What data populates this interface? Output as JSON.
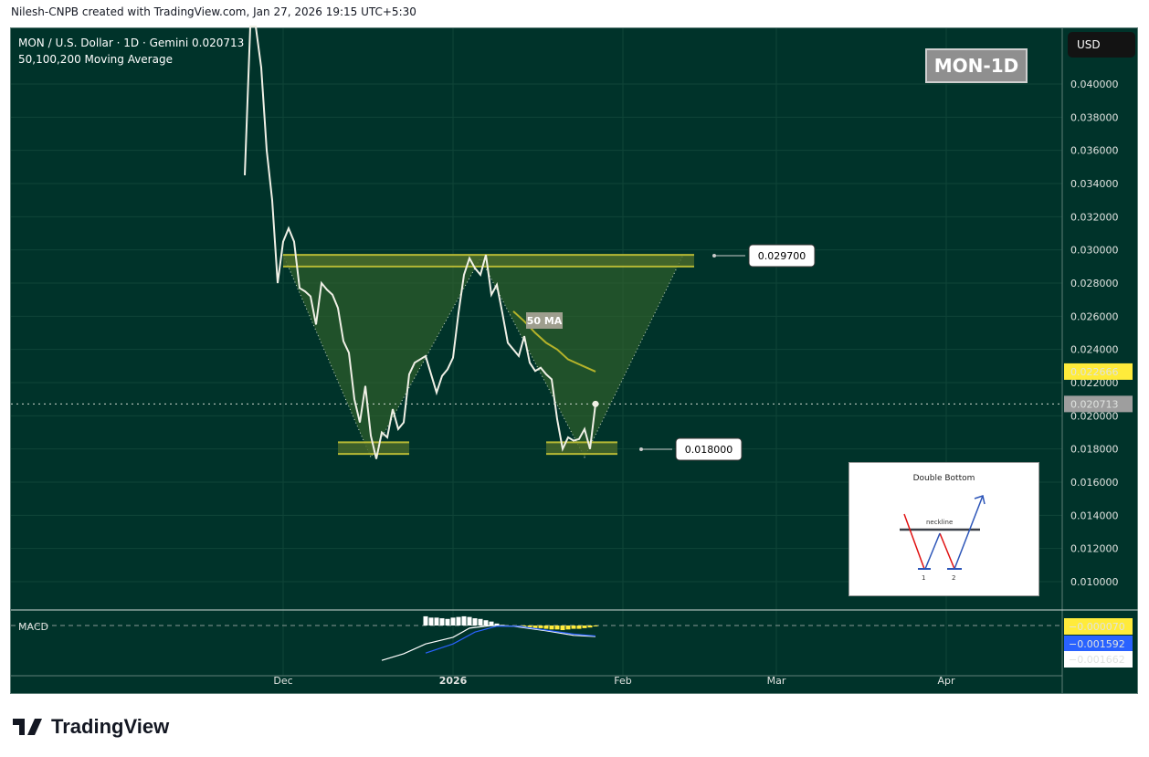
{
  "header": {
    "credit": "Nilesh-CNPB created with TradingView.com, Jan 27, 2026 19:15 UTC+5:30"
  },
  "legend": {
    "symbol_line": "MON / U.S. Dollar · 1D · Gemini  0.020713",
    "indicator": "50,100,200 Moving Average"
  },
  "badge": "MON-1D",
  "currency": "USD",
  "pattern_card": {
    "title": "Double Bottom",
    "neckline": "neckline",
    "bottom1": "1",
    "bottom2": "2"
  },
  "brand": "TradingView",
  "colors": {
    "background": "#00332a",
    "price": "#f0f0e6",
    "zone": "#b5b835",
    "ma50": "#b5b32a",
    "macd": "#ffffff",
    "signal": "#2962ff",
    "hist_pos": "#ffffff",
    "hist_neg": "#ffeb3b"
  },
  "chart_data": [
    {
      "type": "line",
      "title": "MON / U.S. Dollar · 1D · Gemini",
      "interval": "1D",
      "x_start": "2025-11-24",
      "ylim": [
        0.0095,
        0.0415
      ],
      "y_ticks": [
        "0.040000",
        "0.038000",
        "0.036000",
        "0.034000",
        "0.032000",
        "0.030000",
        "0.028000",
        "0.026000",
        "0.024000",
        "0.022000",
        "0.020000",
        "0.018000",
        "0.016000",
        "0.014000",
        "0.012000",
        "0.010000"
      ],
      "x_ticks": [
        {
          "label": "Dec",
          "date": "2025-12-01"
        },
        {
          "label": "2026",
          "date": "2026-01-01"
        },
        {
          "label": "Feb",
          "date": "2026-02-01"
        },
        {
          "label": "Mar",
          "date": "2026-03-01"
        },
        {
          "label": "Apr",
          "date": "2026-04-01"
        }
      ],
      "grid": true,
      "series": [
        {
          "values": [
            0.0345,
            0.0435,
            0.044,
            0.041,
            0.036,
            0.033,
            0.028,
            0.0305,
            0.0313,
            0.0305,
            0.0277,
            0.0275,
            0.0272,
            0.0255,
            0.028,
            0.0276,
            0.0273,
            0.0265,
            0.0245,
            0.0238,
            0.021,
            0.0196,
            0.0218,
            0.0188,
            0.0174,
            0.019,
            0.0187,
            0.0204,
            0.0192,
            0.0196,
            0.0225,
            0.0232,
            0.0234,
            0.0236,
            0.0225,
            0.0214,
            0.0224,
            0.0228,
            0.0235,
            0.0262,
            0.0285,
            0.0295,
            0.0289,
            0.0285,
            0.0297,
            0.0273,
            0.0279,
            0.0262,
            0.0244,
            0.024,
            0.0236,
            0.0248,
            0.0232,
            0.0227,
            0.0229,
            0.0225,
            0.0222,
            0.0198,
            0.018,
            0.0187,
            0.0185,
            0.0186,
            0.0192,
            0.018,
            0.020713
          ]
        },
        {
          "name": "50 MA",
          "points": [
            [
              "2026-01-12",
              0.0263
            ],
            [
              "2026-01-14",
              0.0257
            ],
            [
              "2026-01-16",
              0.025
            ],
            [
              "2026-01-18",
              0.0244
            ],
            [
              "2026-01-20",
              0.024
            ],
            [
              "2026-01-22",
              0.0234
            ],
            [
              "2026-01-27",
              0.022666
            ]
          ]
        }
      ],
      "annotations": {
        "ma_label": "50 MA",
        "last_price": "0.020713",
        "ma_price": "0.022666",
        "resistance_label": "0.029700",
        "support_label": "0.018000",
        "resistance_zone": {
          "from": "2025-12-01",
          "to": "2026-02-14",
          "low": 0.029,
          "high": 0.0297
        },
        "support_zones": [
          {
            "from": "2025-12-11",
            "to": "2025-12-24",
            "low": 0.0177,
            "high": 0.0184
          },
          {
            "from": "2026-01-18",
            "to": "2026-01-31",
            "low": 0.0177,
            "high": 0.0184
          }
        ],
        "pattern_points": [
          [
            "2025-12-01",
            0.0297
          ],
          [
            "2025-12-17",
            0.0175
          ],
          [
            "2026-01-06",
            0.0295
          ],
          [
            "2026-01-25",
            0.0175
          ],
          [
            "2026-02-12",
            0.0297
          ]
        ]
      }
    },
    {
      "type": "bar",
      "title": "MACD",
      "labels": {
        "histogram": "−0.000070",
        "signal": "−0.001592",
        "macd": "−0.001662"
      },
      "macd": [
        [
          "2025-12-19",
          -0.0053
        ],
        [
          "2025-12-23",
          -0.0043
        ],
        [
          "2025-12-27",
          -0.0028
        ],
        [
          "2026-01-01",
          -0.0018
        ],
        [
          "2026-01-04",
          -0.0004
        ],
        [
          "2026-01-08",
          0.0
        ],
        [
          "2026-01-12",
          -0.0001
        ],
        [
          "2026-01-18",
          -0.0008
        ],
        [
          "2026-01-23",
          -0.0015
        ],
        [
          "2026-01-27",
          -0.001662
        ]
      ],
      "signal": [
        [
          "2025-12-27",
          -0.0042
        ],
        [
          "2026-01-01",
          -0.0028
        ],
        [
          "2026-01-05",
          -0.001
        ],
        [
          "2026-01-09",
          -0.0001
        ],
        [
          "2026-01-13",
          -0.0001
        ],
        [
          "2026-01-18",
          -0.0007
        ],
        [
          "2026-01-23",
          -0.0013
        ],
        [
          "2026-01-27",
          -0.001592
        ]
      ],
      "histogram_start": "2025-12-27",
      "histogram": [
        0.0014,
        0.0012,
        0.0012,
        0.0011,
        0.001,
        0.0012,
        0.0013,
        0.0014,
        0.0013,
        0.0011,
        0.001,
        0.0008,
        0.0006,
        0.0003,
        0.0001,
        0.0,
        -0.0001,
        -0.0002,
        -0.0003,
        -0.0003,
        -0.0004,
        -0.0004,
        -0.0005,
        -0.0006,
        -0.0006,
        -0.0007,
        -0.0006,
        -0.0005,
        -0.0005,
        -0.0004,
        -0.0003,
        -7e-05
      ]
    }
  ]
}
